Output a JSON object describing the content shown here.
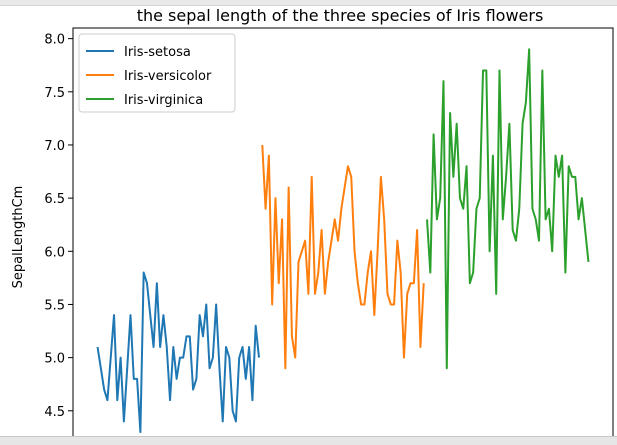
{
  "chart_data": {
    "type": "line",
    "title": "the sepal length of the three species of Iris flowers",
    "xlabel": "",
    "ylabel": "SepalLengthCm",
    "xlim": [
      -7.45,
      156.45
    ],
    "ylim": [
      4.15,
      8.1
    ],
    "yticks": [
      "4.5",
      "5.0",
      "5.5",
      "6.0",
      "6.5",
      "7.0",
      "7.5",
      "8.0"
    ],
    "grid": false,
    "legend_position": "top-left",
    "series": [
      {
        "name": "Iris-setosa",
        "color": "#1f77b4",
        "x_start": 0,
        "values": [
          5.1,
          4.9,
          4.7,
          4.6,
          5.0,
          5.4,
          4.6,
          5.0,
          4.4,
          4.9,
          5.4,
          4.8,
          4.8,
          4.3,
          5.8,
          5.7,
          5.4,
          5.1,
          5.7,
          5.1,
          5.4,
          5.1,
          4.6,
          5.1,
          4.8,
          5.0,
          5.0,
          5.2,
          5.2,
          4.7,
          4.8,
          5.4,
          5.2,
          5.5,
          4.9,
          5.0,
          5.5,
          4.9,
          4.4,
          5.1,
          5.0,
          4.5,
          4.4,
          5.0,
          5.1,
          4.8,
          5.1,
          4.6,
          5.3,
          5.0
        ]
      },
      {
        "name": "Iris-versicolor",
        "color": "#ff7f0e",
        "x_start": 50,
        "values": [
          7.0,
          6.4,
          6.9,
          5.5,
          6.5,
          5.7,
          6.3,
          4.9,
          6.6,
          5.2,
          5.0,
          5.9,
          6.0,
          6.1,
          5.6,
          6.7,
          5.6,
          5.8,
          6.2,
          5.6,
          5.9,
          6.1,
          6.3,
          6.1,
          6.4,
          6.6,
          6.8,
          6.7,
          6.0,
          5.7,
          5.5,
          5.5,
          5.8,
          6.0,
          5.4,
          6.0,
          6.7,
          6.3,
          5.6,
          5.5,
          5.5,
          6.1,
          5.8,
          5.0,
          5.6,
          5.7,
          5.7,
          6.2,
          5.1,
          5.7
        ]
      },
      {
        "name": "Iris-virginica",
        "color": "#2ca02c",
        "x_start": 100,
        "values": [
          6.3,
          5.8,
          7.1,
          6.3,
          6.5,
          7.6,
          4.9,
          7.3,
          6.7,
          7.2,
          6.5,
          6.4,
          6.8,
          5.7,
          5.8,
          6.4,
          6.5,
          7.7,
          7.7,
          6.0,
          6.9,
          5.6,
          7.7,
          6.3,
          6.7,
          7.2,
          6.2,
          6.1,
          6.4,
          7.2,
          7.4,
          7.9,
          6.4,
          6.3,
          6.1,
          7.7,
          6.3,
          6.4,
          6.0,
          6.9,
          6.7,
          6.9,
          5.8,
          6.8,
          6.7,
          6.7,
          6.3,
          6.5,
          6.2,
          5.9
        ]
      }
    ]
  }
}
